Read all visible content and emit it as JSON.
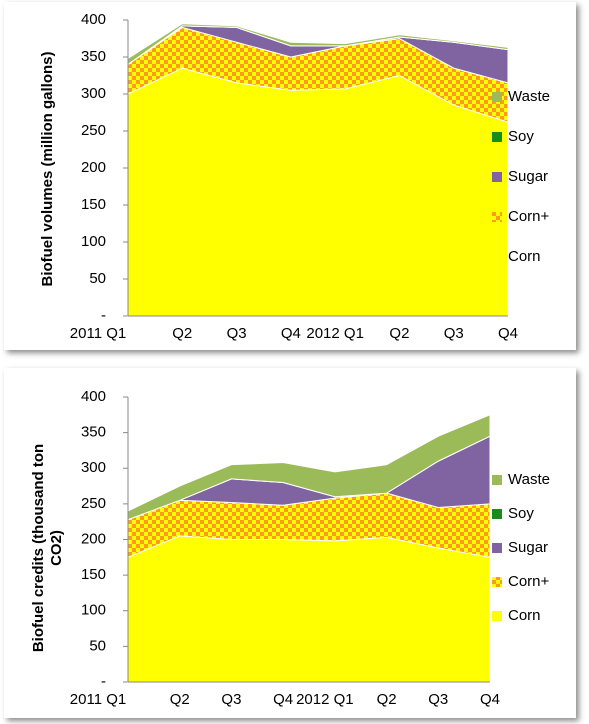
{
  "chart_data": [
    {
      "type": "stacked-area",
      "y_label": "Biofuel volumes (million gallons)",
      "categories": [
        "2011 Q1",
        "Q2",
        "Q3",
        "Q4",
        "2012 Q1",
        "Q2",
        "Q3",
        "Q4"
      ],
      "ylim": [
        0,
        400
      ],
      "yticks": [
        {
          "value": 0,
          "label": "-"
        },
        50,
        100,
        150,
        200,
        250,
        300,
        350,
        400
      ],
      "legend": "right",
      "series": [
        {
          "name": "Corn",
          "color": "#ffff00",
          "values": [
            300,
            335,
            315,
            305,
            307,
            325,
            285,
            262
          ]
        },
        {
          "name": "Corn+",
          "color": "#ff9a1a",
          "pattern": "checker",
          "values": [
            40,
            55,
            55,
            45,
            58,
            50,
            50,
            53
          ]
        },
        {
          "name": "Sugar",
          "color": "#8064a2",
          "values": [
            0,
            2,
            20,
            15,
            0,
            2,
            35,
            45
          ]
        },
        {
          "name": "Soy",
          "color": "#1a8c1a",
          "values": [
            0,
            0,
            0,
            0,
            0,
            0,
            0,
            0
          ]
        },
        {
          "name": "Waste",
          "color": "#9bbb59",
          "values": [
            8,
            3,
            2,
            5,
            3,
            3,
            2,
            3
          ]
        }
      ]
    },
    {
      "type": "stacked-area",
      "y_label": "Biofuel credits (thousand ton CO2)",
      "categories": [
        "2011 Q1",
        "Q2",
        "Q3",
        "Q4",
        "2012 Q1",
        "Q2",
        "Q3",
        "Q4"
      ],
      "ylim": [
        0,
        400
      ],
      "yticks": [
        {
          "value": 0,
          "label": "-"
        },
        50,
        100,
        150,
        200,
        250,
        300,
        350,
        400
      ],
      "legend": "right",
      "series": [
        {
          "name": "Corn",
          "color": "#ffff00",
          "values": [
            175,
            205,
            200,
            200,
            198,
            203,
            188,
            175
          ]
        },
        {
          "name": "Corn+",
          "color": "#ff9a1a",
          "pattern": "checker",
          "values": [
            53,
            50,
            52,
            48,
            60,
            62,
            57,
            75
          ]
        },
        {
          "name": "Sugar",
          "color": "#8064a2",
          "values": [
            0,
            0,
            33,
            32,
            2,
            0,
            65,
            95
          ]
        },
        {
          "name": "Soy",
          "color": "#1a8c1a",
          "values": [
            0,
            0,
            0,
            0,
            0,
            0,
            0,
            0
          ]
        },
        {
          "name": "Waste",
          "color": "#9bbb59",
          "values": [
            12,
            20,
            20,
            28,
            35,
            40,
            35,
            30
          ]
        }
      ]
    }
  ]
}
